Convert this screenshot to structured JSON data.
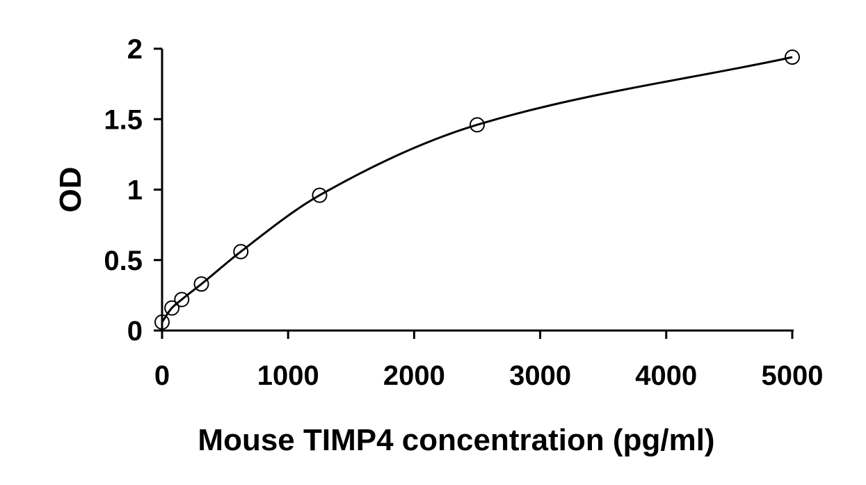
{
  "chart_data": {
    "type": "scatter",
    "xlabel": "Mouse TIMP4 concentration (pg/ml)",
    "ylabel": "OD",
    "xlim": [
      0,
      5000
    ],
    "ylim": [
      0,
      2
    ],
    "x_ticks": [
      0,
      1000,
      2000,
      3000,
      4000,
      5000
    ],
    "y_ticks": [
      0,
      0.5,
      1,
      1.5,
      2
    ],
    "x_tick_labels": [
      "0",
      "1000",
      "2000",
      "3000",
      "4000",
      "5000"
    ],
    "y_tick_labels": [
      "0",
      "0.5",
      "1",
      "1.5",
      "2"
    ],
    "grid": false,
    "legend": "none",
    "series": [
      {
        "points": [
          {
            "x": 0,
            "y": 0.06
          },
          {
            "x": 78,
            "y": 0.16
          },
          {
            "x": 156,
            "y": 0.22
          },
          {
            "x": 312,
            "y": 0.33
          },
          {
            "x": 625,
            "y": 0.56
          },
          {
            "x": 1250,
            "y": 0.96
          },
          {
            "x": 2500,
            "y": 1.46
          },
          {
            "x": 5000,
            "y": 1.94
          }
        ],
        "marker": "open-circle",
        "fit_curve": true,
        "color": "#000000"
      }
    ]
  }
}
